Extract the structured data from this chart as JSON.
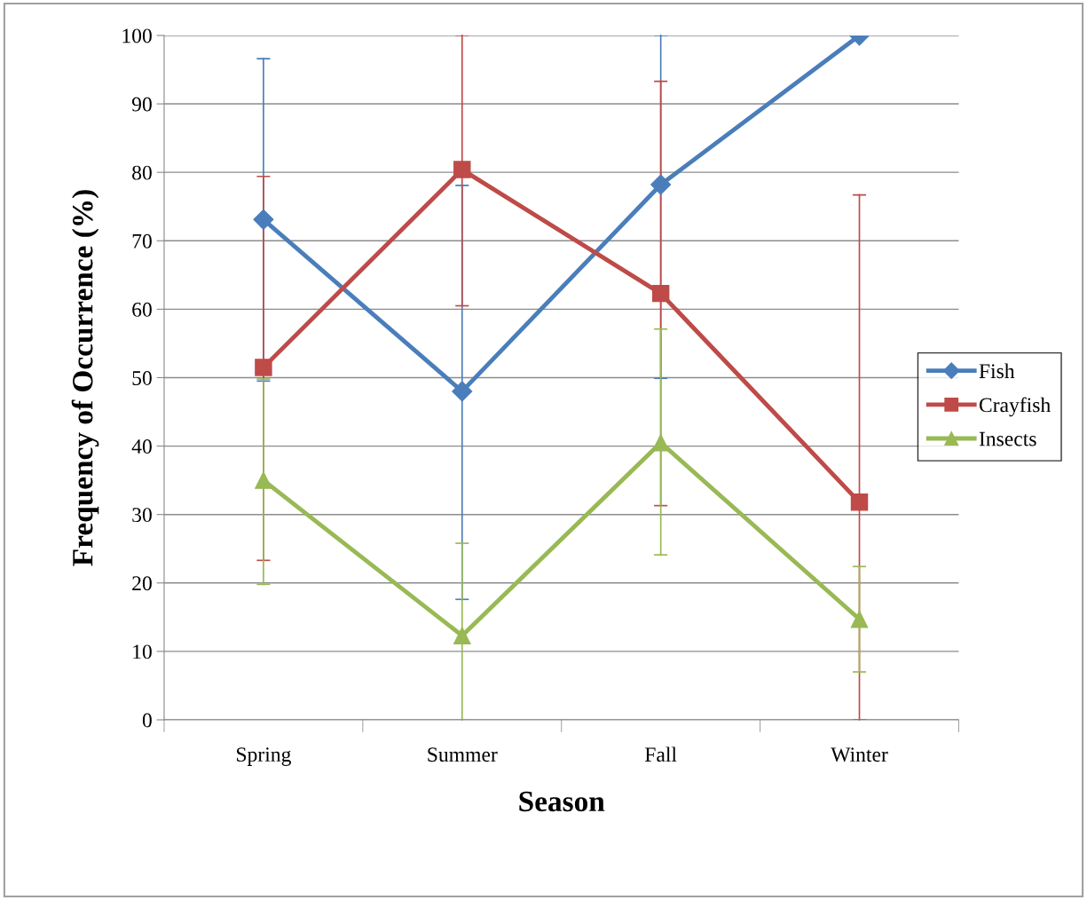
{
  "chart_data": {
    "type": "line",
    "xlabel": "Season",
    "ylabel": "Frequency of Occurrence (%)",
    "categories": [
      "Spring",
      "Summer",
      "Fall",
      "Winter"
    ],
    "series": [
      {
        "name": "Fish",
        "color": "#4a7ebb",
        "marker": "diamond",
        "values": [
          73.1,
          48.0,
          78.2,
          100
        ],
        "errors": [
          [
            49.5,
            96.6
          ],
          [
            17.6,
            78.1
          ],
          [
            49.9,
            100
          ],
          null
        ]
      },
      {
        "name": "Crayfish",
        "color": "#be4b48",
        "marker": "square",
        "values": [
          51.5,
          80.4,
          62.3,
          31.8
        ],
        "errors": [
          [
            23.3,
            79.4
          ],
          [
            60.5,
            100
          ],
          [
            31.3,
            93.3
          ],
          [
            0,
            76.7
          ]
        ]
      },
      {
        "name": "Insects",
        "color": "#98b954",
        "marker": "triangle",
        "values": [
          35.0,
          12.3,
          40.5,
          14.7
        ],
        "errors": [
          [
            19.8,
            49.8
          ],
          [
            0,
            25.8
          ],
          [
            24.1,
            57.1
          ],
          [
            7.0,
            22.4
          ]
        ]
      }
    ],
    "ylim": [
      0,
      100
    ],
    "yticks": [
      0,
      10,
      20,
      30,
      40,
      50,
      60,
      70,
      80,
      90,
      100
    ],
    "grid": "y",
    "legend": "right",
    "line_style": "solid"
  }
}
